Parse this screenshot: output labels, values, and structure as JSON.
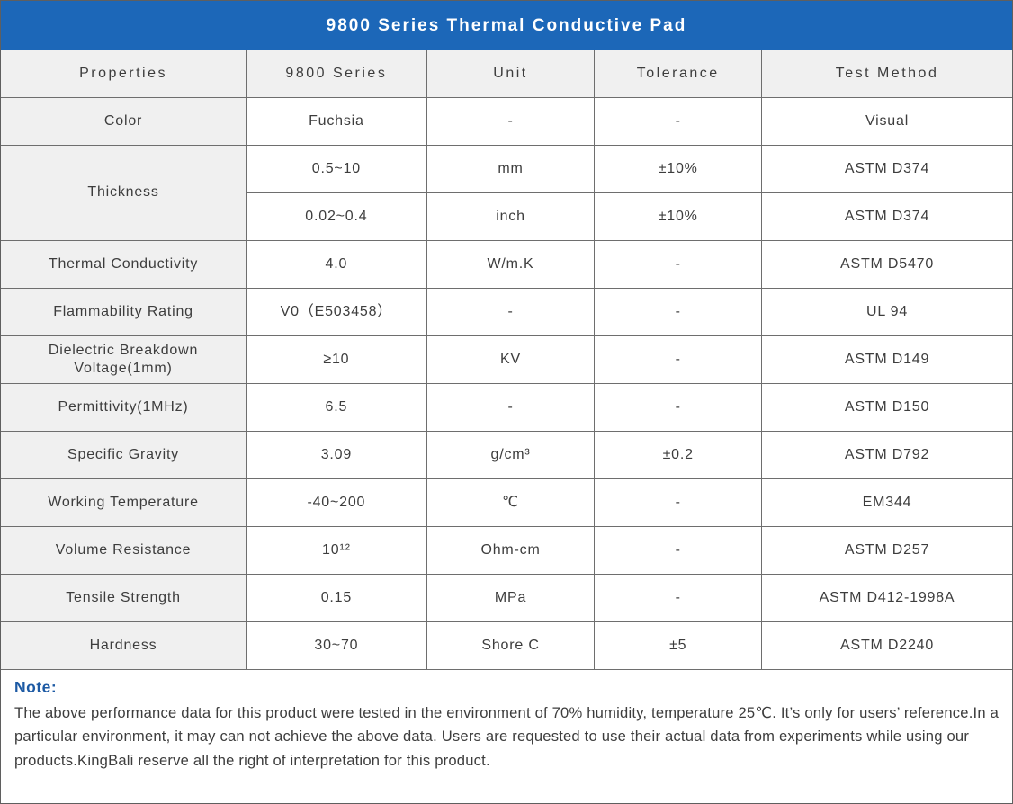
{
  "title": "9800 Series Thermal Conductive Pad",
  "colors": {
    "banner_bg": "#1c67b8",
    "banner_text": "#ffffff",
    "header_row_bg": "#f0f0f0",
    "property_col_bg": "#f0f0f0",
    "grid_border": "#6e6e6e",
    "note_label": "#1d5aa4",
    "body_text": "#3d3d3d"
  },
  "table": {
    "headers": [
      "Properties",
      "9800 Series",
      "Unit",
      "Tolerance",
      "Test Method"
    ],
    "col_widths_pct": [
      24.25,
      17.85,
      16.61,
      16.52,
      24.77
    ],
    "rows": [
      {
        "property": "Color",
        "cells": [
          [
            "Fuchsia",
            "-",
            "-",
            "Visual"
          ]
        ]
      },
      {
        "property": "Thickness",
        "cells": [
          [
            "0.5~10",
            "mm",
            "±10%",
            "ASTM D374"
          ],
          [
            "0.02~0.4",
            "inch",
            "±10%",
            "ASTM D374"
          ]
        ]
      },
      {
        "property": "Thermal Conductivity",
        "cells": [
          [
            "4.0",
            "W/m.K",
            "-",
            "ASTM D5470"
          ]
        ]
      },
      {
        "property": "Flammability Rating",
        "cells": [
          [
            "V0（E503458）",
            "-",
            "-",
            "UL 94"
          ]
        ]
      },
      {
        "property": "Dielectric Breakdown Voltage(1mm)",
        "cells": [
          [
            "≥10",
            "KV",
            "-",
            "ASTM D149"
          ]
        ]
      },
      {
        "property": "Permittivity(1MHz)",
        "cells": [
          [
            "6.5",
            "-",
            "-",
            "ASTM D150"
          ]
        ]
      },
      {
        "property": "Specific Gravity",
        "cells": [
          [
            "3.09",
            "g/cm³",
            "±0.2",
            "ASTM D792"
          ]
        ]
      },
      {
        "property": "Working Temperature",
        "cells": [
          [
            "-40~200",
            "℃",
            "-",
            "EM344"
          ]
        ]
      },
      {
        "property": "Volume Resistance",
        "cells": [
          [
            "10¹²",
            "Ohm-cm",
            "-",
            "ASTM D257"
          ]
        ]
      },
      {
        "property": "Tensile Strength",
        "cells": [
          [
            "0.15",
            "MPa",
            "-",
            "ASTM D412-1998A"
          ]
        ]
      },
      {
        "property": "Hardness",
        "cells": [
          [
            "30~70",
            "Shore C",
            "±5",
            "ASTM D2240"
          ]
        ]
      }
    ]
  },
  "note": {
    "label": "Note:",
    "text": "The above performance data for this product were tested in the environment of 70% humidity, temperature 25℃. It’s only for users’ reference.In a particular environment, it may can not achieve the above data. Users are requested to use their actual data from experiments while using our products.KingBali reserve all the right of interpretation for this product."
  }
}
